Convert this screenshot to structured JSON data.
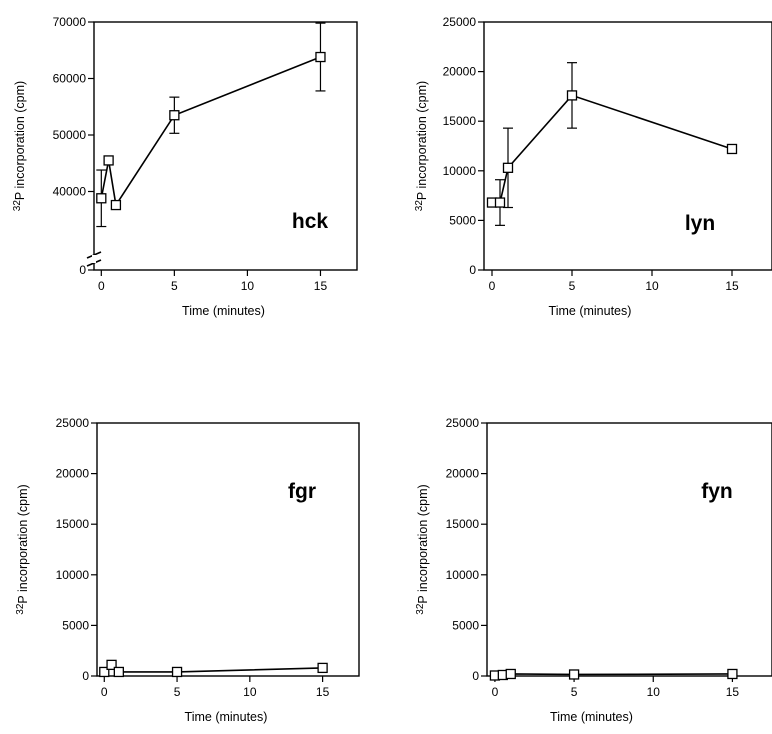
{
  "chart_data": [
    {
      "type": "scatter",
      "panel_label": "hck",
      "xlabel": "Time (minutes)",
      "ylabel_prefix": "32",
      "ylabel_main": "P incorporation (cpm)",
      "xlim": [
        -0.5,
        17.5
      ],
      "ylim": [
        0,
        70000
      ],
      "y_axis_break": true,
      "y_break_lower": 0,
      "y_break_upper": 30000,
      "x_ticks": [
        0,
        5,
        10,
        15
      ],
      "y_ticks": [
        0,
        40000,
        50000,
        60000,
        70000
      ],
      "series": [
        {
          "x": [
            0,
            0.5,
            1,
            5,
            15
          ],
          "y": [
            38800,
            45500,
            37600,
            53500,
            63800
          ],
          "err": [
            5000,
            null,
            null,
            3200,
            6000
          ],
          "connected": true
        }
      ]
    },
    {
      "type": "scatter",
      "panel_label": "lyn",
      "xlabel": "Time (minutes)",
      "ylabel_prefix": "32",
      "ylabel_main": "P incorporation (cpm)",
      "xlim": [
        -0.5,
        17.5
      ],
      "ylim": [
        0,
        25000
      ],
      "y_axis_break": false,
      "x_ticks": [
        0,
        5,
        10,
        15
      ],
      "y_ticks": [
        0,
        5000,
        10000,
        15000,
        20000,
        25000
      ],
      "series": [
        {
          "x": [
            0,
            0.5,
            1,
            5,
            15
          ],
          "y": [
            6800,
            6800,
            10300,
            17600,
            12200
          ],
          "err": [
            null,
            2300,
            4000,
            3300,
            null
          ],
          "connected": true
        }
      ]
    },
    {
      "type": "scatter",
      "panel_label": "fgr",
      "xlabel": "Time (minutes)",
      "ylabel_prefix": "32",
      "ylabel_main": "P incorporation (cpm)",
      "xlim": [
        -0.5,
        17.5
      ],
      "ylim": [
        0,
        25000
      ],
      "y_axis_break": false,
      "x_ticks": [
        0,
        5,
        10,
        15
      ],
      "y_ticks": [
        0,
        5000,
        10000,
        15000,
        20000,
        25000
      ],
      "series": [
        {
          "x": [
            0,
            0.5,
            1,
            5,
            15
          ],
          "y": [
            400,
            1100,
            400,
            400,
            800
          ],
          "err": [
            null,
            null,
            null,
            null,
            null
          ],
          "connected": true
        }
      ]
    },
    {
      "type": "scatter",
      "panel_label": "fyn",
      "xlabel": "Time (minutes)",
      "ylabel_prefix": "32",
      "ylabel_main": "P incorporation (cpm)",
      "xlim": [
        -0.5,
        17.5
      ],
      "ylim": [
        0,
        25000
      ],
      "y_axis_break": false,
      "x_ticks": [
        0,
        5,
        10,
        15
      ],
      "y_ticks": [
        0,
        5000,
        10000,
        15000,
        20000,
        25000
      ],
      "series": [
        {
          "x": [
            0,
            0.5,
            1,
            5,
            15
          ],
          "y": [
            50,
            100,
            200,
            150,
            200
          ],
          "err": [
            null,
            null,
            null,
            null,
            null
          ],
          "connected": true
        }
      ]
    }
  ]
}
